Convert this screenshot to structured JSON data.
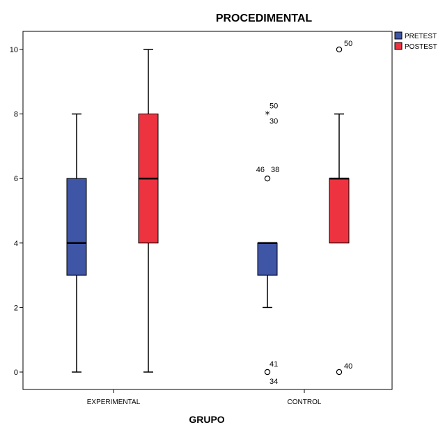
{
  "chart_data": {
    "type": "box",
    "title": "PROCEDIMENTAL",
    "xlabel": "GRUPO",
    "ylabel": "",
    "ylim": [
      -0.6,
      10.6
    ],
    "yticks": [
      0,
      2,
      4,
      6,
      8,
      10
    ],
    "grid": false,
    "legend_position": "top-right",
    "categories": [
      "EXPERIMENTAL",
      "CONTROL"
    ],
    "series": [
      {
        "name": "PRETEST",
        "color": "#3F55A6",
        "boxes": [
          {
            "category": "EXPERIMENTAL",
            "whisker_low": 0,
            "q1": 3,
            "median": 4,
            "q3": 6,
            "whisker_high": 8,
            "outliers": []
          },
          {
            "category": "CONTROL",
            "whisker_low": 2,
            "q1": 3,
            "median": 4,
            "q3": 4,
            "whisker_high": 4,
            "outliers": [
              {
                "value": 8,
                "marker": "star",
                "labels": [
                  "50",
                  "30"
                ]
              },
              {
                "value": 6,
                "marker": "circle",
                "labels": [
                  "46",
                  "38"
                ]
              },
              {
                "value": 0,
                "marker": "circle",
                "labels": [
                  "41",
                  "34"
                ]
              }
            ]
          }
        ]
      },
      {
        "name": "POSTEST",
        "color": "#EE3340",
        "boxes": [
          {
            "category": "EXPERIMENTAL",
            "whisker_low": 0,
            "q1": 4,
            "median": 6,
            "q3": 8,
            "whisker_high": 10,
            "outliers": []
          },
          {
            "category": "CONTROL",
            "whisker_low": 4,
            "q1": 4,
            "median": 6,
            "q3": 6,
            "whisker_high": 8,
            "outliers": [
              {
                "value": 10,
                "marker": "circle",
                "labels": [
                  "50"
                ]
              },
              {
                "value": 0,
                "marker": "circle",
                "labels": [
                  "40"
                ]
              }
            ]
          }
        ]
      }
    ]
  }
}
